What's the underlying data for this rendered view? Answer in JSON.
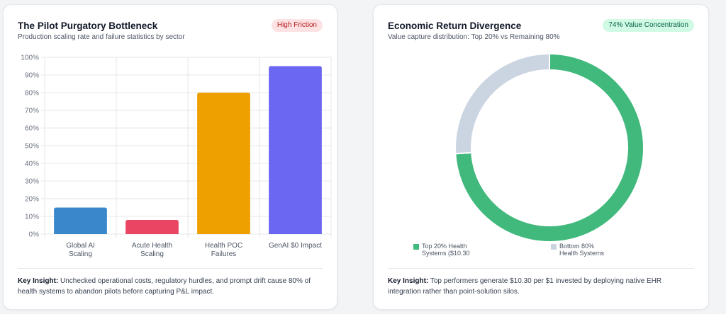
{
  "left_card": {
    "title": "The Pilot Purgatory Bottleneck",
    "subtitle": "Production scaling rate and failure statistics by sector",
    "badge": "High Friction",
    "insight_label": "Key Insight:",
    "insight_text": " Unchecked operational costs, regulatory hurdles, and prompt drift cause 80% of health systems to abandon pilots before capturing P&L impact.",
    "colors": {
      "badge_bg": "#fde2e4",
      "badge_text": "#b91c1c"
    }
  },
  "right_card": {
    "title": "Economic Return Divergence",
    "subtitle": "Value capture distribution: Top 20% vs Remaining 80%",
    "badge": "74% Value Concentration",
    "insight_label": "Key Insight:",
    "insight_text": " Top performers generate $10.30 per $1 invested by deploying native EHR integration rather than point-solution silos.",
    "legend": [
      {
        "line1": "Top 20% Health",
        "line2": "Systems ($10.30",
        "color": "#41b97c"
      },
      {
        "line1": "Bottom 80%",
        "line2": "Health Systems",
        "color": "#cbd5e1"
      }
    ],
    "colors": {
      "badge_bg": "#d1fae5",
      "badge_text": "#065f46"
    }
  },
  "chart_data": [
    {
      "type": "bar",
      "categories": [
        [
          "Global AI",
          "Scaling"
        ],
        [
          "Acute Health",
          "Scaling"
        ],
        [
          "Health POC",
          "Failures"
        ],
        [
          "GenAI $0 Impact"
        ]
      ],
      "values": [
        15,
        8,
        80,
        95
      ],
      "colors": [
        "#3b87cc",
        "#ea4663",
        "#eda000",
        "#6b67f2"
      ],
      "y_ticks": [
        "0%",
        "10%",
        "20%",
        "30%",
        "40%",
        "50%",
        "60%",
        "70%",
        "80%",
        "90%",
        "100%"
      ],
      "ylim": [
        0,
        100
      ],
      "grid": true
    },
    {
      "type": "pie",
      "variant": "doughnut",
      "values": [
        74,
        26
      ],
      "colors": [
        "#41b97c",
        "#cbd5e1"
      ],
      "legend_placement": "bottom"
    }
  ]
}
